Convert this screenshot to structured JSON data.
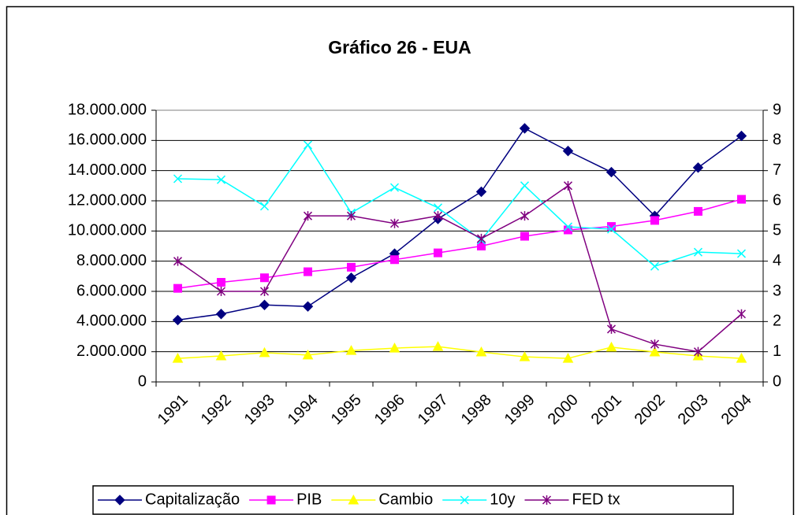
{
  "chart_data": {
    "type": "line",
    "title": "Gráfico 26 - EUA",
    "categories": [
      "1991",
      "1992",
      "1993",
      "1994",
      "1995",
      "1996",
      "1997",
      "1998",
      "1999",
      "2000",
      "2001",
      "2002",
      "2003",
      "2004"
    ],
    "ylim": [
      0,
      18000000
    ],
    "yticks": [
      0,
      {
        "value": 2000000,
        "label": "2.000.000"
      },
      {
        "value": 4000000,
        "label": "4.000.000"
      },
      {
        "value": 6000000,
        "label": "6.000.000"
      },
      {
        "value": 8000000,
        "label": "8.000.000"
      },
      {
        "value": 10000000,
        "label": "10.000.000"
      },
      {
        "value": 12000000,
        "label": "12.000.000"
      },
      {
        "value": 14000000,
        "label": "14.000.000"
      },
      {
        "value": 16000000,
        "label": "16.000.000"
      },
      {
        "value": 18000000,
        "label": "18.000.000"
      }
    ],
    "y2lim": [
      0,
      9
    ],
    "y2ticks": [
      0,
      1,
      2,
      3,
      4,
      5,
      6,
      7,
      8,
      9
    ],
    "grid": true,
    "legend": "bottom",
    "series": [
      {
        "name": "Capitalização",
        "color": "#000080",
        "marker": "diamond",
        "values": [
          4100000,
          4500000,
          5100000,
          5000000,
          6900000,
          8500000,
          10800000,
          12600000,
          16800000,
          15300000,
          13900000,
          11000000,
          14200000,
          16300000
        ]
      },
      {
        "name": "PIB",
        "color": "#ff00ff",
        "marker": "square",
        "values": [
          6200000,
          6600000,
          6900000,
          7300000,
          7600000,
          8100000,
          8550000,
          9000000,
          9650000,
          10070000,
          10300000,
          10700000,
          11300000,
          12100000
        ]
      },
      {
        "name": "Cambio",
        "color": "#ffff00",
        "marker": "triangle",
        "axis": "y2",
        "values": [
          0.78,
          0.86,
          0.97,
          0.89,
          1.04,
          1.12,
          1.17,
          0.99,
          0.83,
          0.78,
          1.15,
          0.99,
          0.86,
          0.78
        ]
      },
      {
        "name": "10y",
        "color": "#00ffff",
        "marker": "x",
        "axis": "y2",
        "values": [
          6.73,
          6.7,
          5.82,
          7.85,
          5.6,
          6.44,
          5.77,
          4.7,
          6.5,
          5.14,
          5.06,
          3.83,
          4.3,
          4.25
        ]
      },
      {
        "name": "FED tx",
        "color": "#800080",
        "marker": "star",
        "axis": "y2",
        "values": [
          4,
          3,
          3,
          5.5,
          5.5,
          5.25,
          5.5,
          4.75,
          5.5,
          6.5,
          1.75,
          1.25,
          1,
          2.25
        ]
      }
    ]
  }
}
